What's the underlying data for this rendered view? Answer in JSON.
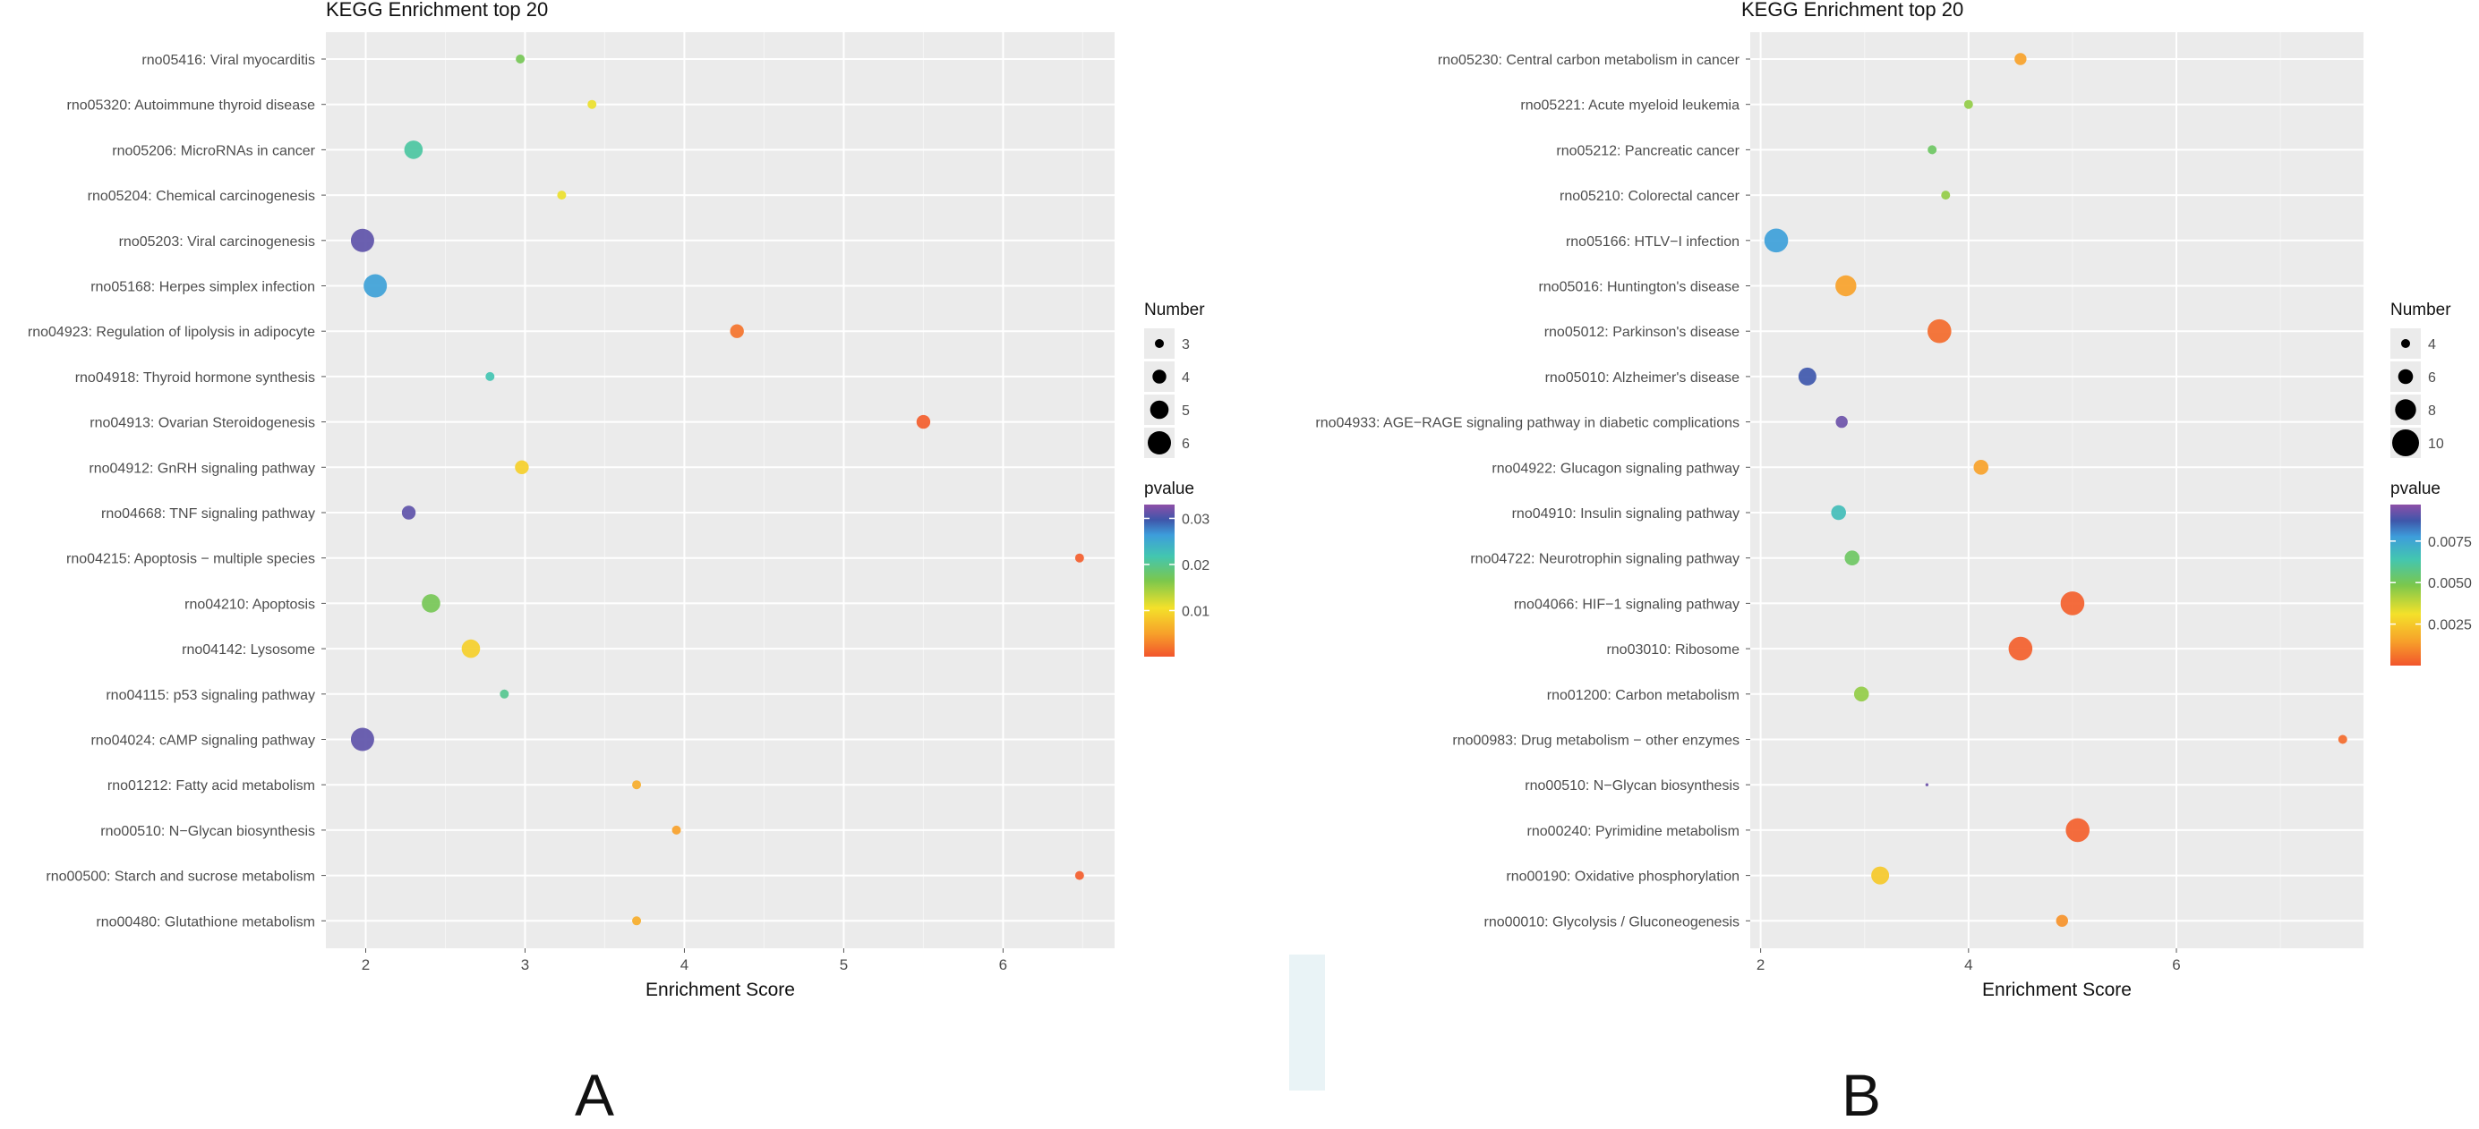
{
  "chart_data": [
    {
      "panel_label": "A",
      "type": "scatter",
      "title": "KEGG Enrichment top 20",
      "xlabel": "Enrichment Score",
      "ylabel": "",
      "xlim": [
        1.75,
        6.7
      ],
      "xticks": [
        2,
        3,
        4,
        5,
        6
      ],
      "grid": true,
      "categories": [
        "rno05416: Viral myocarditis",
        "rno05320: Autoimmune thyroid disease",
        "rno05206: MicroRNAs in cancer",
        "rno05204: Chemical carcinogenesis",
        "rno05203: Viral carcinogenesis",
        "rno05168: Herpes simplex infection",
        "rno04923: Regulation of lipolysis in adipocyte",
        "rno04918: Thyroid hormone synthesis",
        "rno04913: Ovarian Steroidogenesis",
        "rno04912: GnRH signaling pathway",
        "rno04668: TNF signaling pathway",
        "rno04215: Apoptosis − multiple species",
        "rno04210: Apoptosis",
        "rno04142: Lysosome",
        "rno04115: p53 signaling pathway",
        "rno04024: cAMP signaling pathway",
        "rno01212: Fatty acid metabolism",
        "rno00510: N−Glycan biosynthesis",
        "rno00500: Starch and sucrose metabolism",
        "rno00480: Glutathione metabolism"
      ],
      "x": [
        2.97,
        3.42,
        2.3,
        3.23,
        1.98,
        2.06,
        4.33,
        2.78,
        5.5,
        2.98,
        2.27,
        6.48,
        2.41,
        2.66,
        2.87,
        1.98,
        3.7,
        3.95,
        6.48,
        3.7
      ],
      "number": [
        3,
        3,
        5,
        3,
        6,
        6,
        4,
        3,
        4,
        4,
        4,
        3,
        5,
        5,
        3,
        6,
        3,
        3,
        3,
        3
      ],
      "pvalue": [
        0.017,
        0.011,
        0.021,
        0.011,
        0.031,
        0.026,
        0.002,
        0.022,
        0.0005,
        0.009,
        0.031,
        0.0005,
        0.017,
        0.009,
        0.02,
        0.031,
        0.006,
        0.005,
        0.0005,
        0.006
      ],
      "legend_number": {
        "title": "Number",
        "values": [
          3,
          4,
          5,
          6
        ],
        "labels": [
          "3",
          "4",
          "5",
          "6"
        ]
      },
      "legend_color": {
        "title": "pvalue",
        "min": 0,
        "max": 0.033,
        "ticks": [
          0.01,
          0.02,
          0.03
        ],
        "labels": [
          "0.01",
          "0.02",
          "0.03"
        ]
      },
      "legend_placement": "right"
    },
    {
      "panel_label": "B",
      "type": "scatter",
      "title": "KEGG Enrichment top 20",
      "xlabel": "Enrichment Score",
      "ylabel": "",
      "xlim": [
        1.9,
        7.8
      ],
      "xticks": [
        2,
        4,
        6
      ],
      "grid": true,
      "categories": [
        "rno05230: Central carbon metabolism in cancer",
        "rno05221: Acute myeloid leukemia",
        "rno05212: Pancreatic cancer",
        "rno05210: Colorectal cancer",
        "rno05166: HTLV−I infection",
        "rno05016: Huntington's disease",
        "rno05012: Parkinson's disease",
        "rno05010: Alzheimer's disease",
        "rno04933: AGE−RAGE signaling pathway in diabetic complications",
        "rno04922: Glucagon signaling pathway",
        "rno04910: Insulin signaling pathway",
        "rno04722: Neurotrophin signaling pathway",
        "rno04066: HIF−1 signaling pathway",
        "rno03010: Ribosome",
        "rno01200: Carbon metabolism",
        "rno00983: Drug metabolism − other enzymes",
        "rno00510: N−Glycan biosynthesis",
        "rno00240: Pyrimidine metabolism",
        "rno00190: Oxidative phosphorylation",
        "rno00010: Glycolysis / Gluconeogenesis"
      ],
      "x": [
        4.5,
        4.0,
        3.65,
        3.78,
        2.15,
        2.82,
        3.72,
        2.45,
        2.78,
        4.12,
        2.75,
        2.88,
        5.0,
        4.5,
        2.97,
        7.6,
        3.6,
        5.05,
        3.15,
        4.9
      ],
      "number": [
        5,
        4,
        4,
        4,
        9,
        8,
        9,
        7,
        5,
        6,
        6,
        6,
        9,
        9,
        6,
        4,
        2,
        9,
        7,
        5
      ],
      "pvalue": [
        0.0015,
        0.0045,
        0.0052,
        0.0045,
        0.0077,
        0.0015,
        0.0004,
        0.0087,
        0.0093,
        0.0015,
        0.0067,
        0.0052,
        0.0002,
        0.0002,
        0.0045,
        0.0004,
        0.0093,
        0.0002,
        0.0025,
        0.0012
      ],
      "legend_number": {
        "title": "Number",
        "values": [
          4,
          6,
          8,
          10
        ],
        "labels": [
          "4",
          "6",
          "8",
          "10"
        ]
      },
      "legend_color": {
        "title": "pvalue",
        "min": 0,
        "max": 0.0097,
        "ticks": [
          0.0025,
          0.005,
          0.0075
        ],
        "labels": [
          "0.0025",
          "0.0050",
          "0.0075"
        ]
      },
      "legend_placement": "right"
    }
  ],
  "panel_labels": [
    "A",
    "B"
  ]
}
